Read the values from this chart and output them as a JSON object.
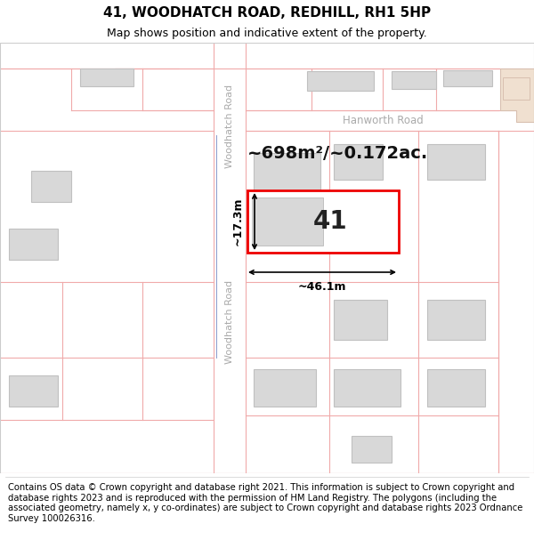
{
  "title": "41, WOODHATCH ROAD, REDHILL, RH1 5HP",
  "subtitle": "Map shows position and indicative extent of the property.",
  "footer_text": "Contains OS data © Crown copyright and database right 2021. This information is subject to Crown copyright and database rights 2023 and is reproduced with the permission of HM Land Registry. The polygons (including the associated geometry, namely x, y co-ordinates) are subject to Crown copyright and database rights 2023 Ordnance Survey 100026316.",
  "map_bg": "#ffffff",
  "road_line_color": "#f0aaaa",
  "road_fill_color": "#f8f0f0",
  "building_fill": "#d8d8d8",
  "building_stroke": "#c0c0c0",
  "highlight_stroke": "#ee0000",
  "road_label_color": "#aaaaaa",
  "hanworth_label_color": "#aaaaaa",
  "tan_fill": "#f0e0d0",
  "tan_stroke": "#d8c0b0",
  "blue_line_color": "#8899cc",
  "measure_label": "~698m²/~0.172ac.",
  "property_label": "41",
  "width_label": "~46.1m",
  "height_label": "~17.3m",
  "woodhatch_road_label": "Woodhatch Road",
  "hanworth_road_label": "Hanworth Road",
  "title_fontsize": 11,
  "subtitle_fontsize": 9,
  "footer_fontsize": 7.2,
  "map_border_color": "#cccccc"
}
